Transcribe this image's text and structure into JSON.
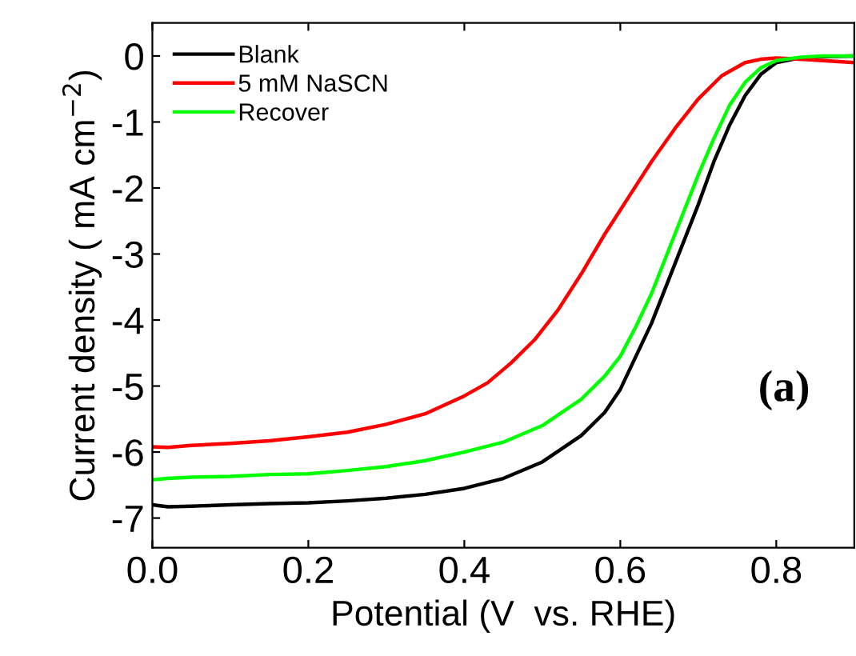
{
  "chart_data": {
    "type": "line",
    "xlabel": "Potential (V  vs. RHE)",
    "ylabel": "Current density ( mA cm$^{−2}$)",
    "xlim": [
      0,
      0.9
    ],
    "ylim": [
      -7.45,
      0.5
    ],
    "xticks": [
      {
        "value": 0,
        "label": "0.0"
      },
      0.2,
      0.4,
      0.6,
      0.8
    ],
    "yticks": [
      0,
      -1,
      -2,
      -3,
      -4,
      -5,
      -6,
      -7
    ],
    "grid": false,
    "legend": "top left",
    "marker": "none",
    "line_style": "solid",
    "annotations": [
      "(a)"
    ],
    "series": [
      {
        "name": "Blank",
        "color": "#000000",
        "x": [
          0,
          0.02,
          0.05,
          0.1,
          0.15,
          0.2,
          0.25,
          0.3,
          0.35,
          0.4,
          0.45,
          0.5,
          0.55,
          0.58,
          0.6,
          0.62,
          0.64,
          0.66,
          0.68,
          0.7,
          0.72,
          0.74,
          0.76,
          0.78,
          0.8,
          0.83,
          0.86,
          0.9
        ],
        "values": [
          -6.8,
          -6.83,
          -6.82,
          -6.8,
          -6.78,
          -6.77,
          -6.74,
          -6.7,
          -6.64,
          -6.55,
          -6.4,
          -6.15,
          -5.75,
          -5.4,
          -5.05,
          -4.55,
          -4.05,
          -3.45,
          -2.85,
          -2.25,
          -1.6,
          -1.05,
          -0.6,
          -0.28,
          -0.1,
          -0.03,
          -0.01,
          0.0
        ]
      },
      {
        "name": "5 mM NaSCN",
        "color": "#ff0000",
        "x": [
          0,
          0.02,
          0.05,
          0.1,
          0.15,
          0.2,
          0.25,
          0.3,
          0.35,
          0.4,
          0.43,
          0.46,
          0.49,
          0.52,
          0.55,
          0.58,
          0.61,
          0.64,
          0.67,
          0.7,
          0.73,
          0.76,
          0.78,
          0.8,
          0.83,
          0.86,
          0.9
        ],
        "values": [
          -5.92,
          -5.93,
          -5.9,
          -5.87,
          -5.83,
          -5.77,
          -5.7,
          -5.58,
          -5.42,
          -5.15,
          -4.95,
          -4.65,
          -4.3,
          -3.85,
          -3.3,
          -2.7,
          -2.15,
          -1.6,
          -1.1,
          -0.65,
          -0.3,
          -0.1,
          -0.05,
          -0.03,
          -0.05,
          -0.07,
          -0.1
        ]
      },
      {
        "name": "Recover",
        "color": "#00ff00",
        "x": [
          0,
          0.02,
          0.05,
          0.1,
          0.15,
          0.2,
          0.25,
          0.3,
          0.35,
          0.4,
          0.45,
          0.5,
          0.55,
          0.58,
          0.6,
          0.62,
          0.64,
          0.66,
          0.68,
          0.7,
          0.72,
          0.74,
          0.76,
          0.78,
          0.8,
          0.83,
          0.86,
          0.9
        ],
        "values": [
          -6.42,
          -6.4,
          -6.38,
          -6.37,
          -6.34,
          -6.33,
          -6.28,
          -6.22,
          -6.13,
          -6.0,
          -5.85,
          -5.6,
          -5.2,
          -4.85,
          -4.55,
          -4.1,
          -3.6,
          -3.0,
          -2.4,
          -1.8,
          -1.25,
          -0.75,
          -0.4,
          -0.18,
          -0.07,
          -0.02,
          0.0,
          0.0
        ]
      }
    ]
  }
}
